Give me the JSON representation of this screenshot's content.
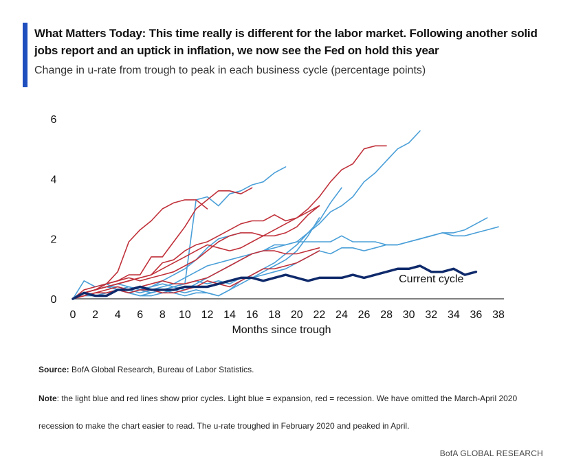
{
  "header": {
    "title": "What Matters Today: This time really is different for the labor market. Following another solid jobs report and an uptick in inflation, we now see the Fed on hold this year",
    "subtitle": "Change in u-rate from trough to peak in each business cycle (percentage points)"
  },
  "footer": {
    "source_label": "Source:",
    "source_text": " BofA Global Research, Bureau of Labor Statistics.",
    "note_label": "Note",
    "note_text_1": ": the light blue and red lines show prior cycles. Light blue = expansion, red = recession. We have omitted the March-April 2020",
    "note_text_2": "recession to make the chart easier to read. The u-rate troughed in February 2020 and peaked in April.",
    "brand": "BofA GLOBAL RESEARCH"
  },
  "colors": {
    "expansion": "#4a9fd8",
    "recession": "#c0313a",
    "current": "#0f2a6b",
    "axis": "#555555",
    "accent": "#1f4fbf"
  },
  "chart_data": {
    "type": "line",
    "title": "",
    "xlabel": "Months since trough",
    "ylabel": "",
    "xlim": [
      0,
      38
    ],
    "ylim": [
      0,
      6
    ],
    "x_ticks": [
      0,
      2,
      4,
      6,
      8,
      10,
      12,
      14,
      16,
      18,
      20,
      22,
      24,
      26,
      28,
      30,
      32,
      34,
      36,
      38
    ],
    "y_ticks": [
      0,
      2,
      4,
      6
    ],
    "grid": false,
    "legend": "none",
    "annotations": [
      {
        "text": "Current cycle",
        "x": 32,
        "y": 0.55
      }
    ],
    "series": [
      {
        "kind": "expansion",
        "x": [
          0,
          1,
          2,
          3,
          4,
          5,
          6,
          7,
          8,
          9,
          10,
          11,
          12,
          13,
          14,
          15,
          16,
          17,
          18,
          19
        ],
        "y": [
          0,
          0.6,
          0.4,
          0.5,
          0.3,
          0.4,
          0.3,
          0.2,
          0.3,
          0.4,
          0.5,
          3.3,
          3.4,
          3.1,
          3.5,
          3.6,
          3.8,
          3.9,
          4.2,
          4.4
        ]
      },
      {
        "kind": "expansion",
        "x": [
          0,
          1,
          2,
          3,
          4,
          5,
          6,
          7,
          8,
          9,
          10,
          11,
          12,
          13,
          14,
          15,
          16,
          17,
          18,
          19,
          20,
          21,
          22,
          23,
          24,
          25,
          26,
          27,
          28,
          29,
          30,
          31,
          32,
          33,
          34,
          35,
          36,
          37,
          38
        ],
        "y": [
          0,
          0.2,
          0.3,
          0.4,
          0.4,
          0.3,
          0.2,
          0.3,
          0.4,
          0.5,
          0.7,
          0.9,
          1.1,
          1.2,
          1.3,
          1.4,
          1.5,
          1.6,
          1.7,
          1.8,
          1.9,
          1.9,
          1.9,
          1.9,
          2.1,
          1.9,
          1.9,
          1.9,
          1.8,
          1.8,
          1.9,
          2.0,
          2.1,
          2.2,
          2.1,
          2.1,
          2.2,
          2.3,
          2.4
        ]
      },
      {
        "kind": "expansion",
        "x": [
          0,
          1,
          2,
          3,
          4,
          5,
          6,
          7,
          8,
          9,
          10,
          11,
          12,
          13,
          14,
          15,
          16,
          17,
          18,
          19,
          20,
          21,
          22,
          23,
          24,
          25,
          26,
          27,
          28,
          29,
          30,
          31,
          32,
          33,
          34,
          35,
          36,
          37
        ],
        "y": [
          0,
          0.2,
          0.3,
          0.4,
          0.5,
          0.4,
          0.3,
          0.4,
          0.5,
          0.4,
          0.5,
          0.6,
          0.5,
          0.6,
          0.5,
          0.7,
          0.7,
          0.8,
          0.9,
          1.0,
          1.2,
          1.4,
          1.6,
          1.5,
          1.7,
          1.7,
          1.6,
          1.7,
          1.8,
          1.8,
          1.9,
          2.0,
          2.1,
          2.2,
          2.2,
          2.3,
          2.5,
          2.7
        ]
      },
      {
        "kind": "expansion",
        "x": [
          0,
          1,
          2,
          3,
          4,
          5,
          6,
          7,
          8,
          9,
          10,
          11,
          12,
          13,
          14,
          15,
          16,
          17,
          18,
          19,
          20,
          21,
          22,
          23,
          24,
          25,
          26,
          27,
          28,
          29,
          30,
          31
        ],
        "y": [
          0,
          0.2,
          0.1,
          0.2,
          0.3,
          0.2,
          0.3,
          0.2,
          0.3,
          0.4,
          0.3,
          0.5,
          0.7,
          0.9,
          1.1,
          1.3,
          1.5,
          1.6,
          1.8,
          1.8,
          1.9,
          2.2,
          2.5,
          2.9,
          3.1,
          3.4,
          3.9,
          4.2,
          4.6,
          5.0,
          5.2,
          5.6
        ]
      },
      {
        "kind": "expansion",
        "x": [
          0,
          1,
          2,
          3,
          4,
          5,
          6,
          7,
          8,
          9,
          10,
          11,
          12,
          13,
          14,
          15,
          16,
          17,
          18,
          19,
          20,
          21,
          22,
          23,
          24
        ],
        "y": [
          0,
          0.2,
          0.3,
          0.5,
          0.3,
          0.2,
          0.1,
          0.2,
          0.3,
          0.2,
          0.1,
          0.2,
          0.2,
          0.1,
          0.3,
          0.6,
          0.8,
          1.0,
          1.2,
          1.5,
          1.8,
          2.2,
          2.6,
          3.2,
          3.7
        ]
      },
      {
        "kind": "expansion",
        "x": [
          0,
          1,
          2,
          3,
          4,
          5,
          6,
          7,
          8,
          9,
          10,
          11,
          12,
          13,
          14,
          15
        ],
        "y": [
          0,
          0.2,
          0.3,
          0.4,
          0.3,
          0.2,
          0.3,
          0.4,
          0.6,
          0.8,
          1.0,
          1.3,
          1.7,
          2.0,
          2.1,
          2.2
        ]
      },
      {
        "kind": "expansion",
        "x": [
          0,
          1,
          2,
          3,
          4,
          5,
          6,
          7,
          8,
          9,
          10,
          11,
          12,
          13,
          14,
          15,
          16,
          17,
          18,
          19,
          20,
          21,
          22
        ],
        "y": [
          0,
          0.1,
          0.1,
          0.2,
          0.3,
          0.2,
          0.1,
          0.1,
          0.2,
          0.3,
          0.2,
          0.3,
          0.2,
          0.1,
          0.3,
          0.5,
          0.7,
          0.9,
          1.1,
          1.3,
          1.6,
          2.1,
          2.7
        ]
      },
      {
        "kind": "recession",
        "x": [
          0,
          1,
          2,
          3,
          4,
          5,
          6,
          7,
          8,
          9,
          10,
          11,
          12
        ],
        "y": [
          0,
          0.2,
          0.3,
          0.5,
          0.9,
          1.9,
          2.3,
          2.6,
          3.0,
          3.2,
          3.3,
          3.3,
          3.0
        ]
      },
      {
        "kind": "recession",
        "x": [
          0,
          1,
          2,
          3,
          4,
          5,
          6,
          7,
          8,
          9,
          10,
          11,
          12,
          13,
          14,
          15,
          16
        ],
        "y": [
          0,
          0.3,
          0.4,
          0.5,
          0.6,
          0.8,
          0.8,
          1.4,
          1.4,
          1.9,
          2.4,
          3.0,
          3.3,
          3.6,
          3.6,
          3.5,
          3.7
        ]
      },
      {
        "kind": "recession",
        "x": [
          0,
          1,
          2,
          3,
          4,
          5,
          6,
          7,
          8,
          9,
          10,
          11,
          12,
          13,
          14,
          15,
          16,
          17,
          18,
          19,
          20,
          21,
          22,
          23,
          24,
          25,
          26,
          27,
          28
        ],
        "y": [
          0,
          0.2,
          0.3,
          0.4,
          0.5,
          0.6,
          0.7,
          0.8,
          1.0,
          1.2,
          1.4,
          1.6,
          1.8,
          1.7,
          1.6,
          1.7,
          1.9,
          2.1,
          2.3,
          2.5,
          2.7,
          3.0,
          3.4,
          3.9,
          4.3,
          4.5,
          5.0,
          5.1,
          5.1
        ]
      },
      {
        "kind": "recession",
        "x": [
          0,
          1,
          2,
          3,
          4,
          5,
          6,
          7,
          8,
          9,
          10,
          11,
          12,
          13,
          14,
          15,
          16,
          17,
          18,
          19,
          20,
          21,
          22
        ],
        "y": [
          0,
          0.2,
          0.3,
          0.4,
          0.5,
          0.6,
          0.7,
          0.8,
          1.2,
          1.3,
          1.6,
          1.8,
          1.9,
          2.1,
          2.3,
          2.5,
          2.6,
          2.6,
          2.8,
          2.6,
          2.7,
          2.9,
          3.1
        ]
      },
      {
        "kind": "recession",
        "x": [
          0,
          1,
          2,
          3,
          4,
          5,
          6,
          7,
          8,
          9,
          10,
          11,
          12,
          13,
          14,
          15,
          16,
          17,
          18,
          19,
          20,
          21,
          22
        ],
        "y": [
          0,
          0.2,
          0.3,
          0.5,
          0.6,
          0.7,
          0.6,
          0.7,
          0.8,
          0.9,
          1.1,
          1.3,
          1.6,
          1.9,
          2.1,
          2.2,
          2.2,
          2.1,
          2.1,
          2.2,
          2.4,
          2.8,
          3.1
        ]
      },
      {
        "kind": "recession",
        "x": [
          0,
          1,
          2,
          3,
          4,
          5,
          6,
          7,
          8,
          9,
          10,
          11,
          12,
          13,
          14,
          15,
          16,
          17,
          18,
          19,
          20,
          21,
          22
        ],
        "y": [
          0,
          0.1,
          0.2,
          0.3,
          0.4,
          0.3,
          0.4,
          0.5,
          0.6,
          0.5,
          0.5,
          0.6,
          0.7,
          0.9,
          1.1,
          1.3,
          1.5,
          1.6,
          1.6,
          1.5,
          1.5,
          1.6,
          1.7
        ]
      },
      {
        "kind": "recession",
        "x": [
          0,
          1,
          2,
          3,
          4,
          5,
          6,
          7,
          8,
          9,
          10,
          11,
          12,
          13,
          14,
          15,
          16,
          17,
          18,
          19,
          20,
          21,
          22
        ],
        "y": [
          0,
          0.1,
          0.2,
          0.2,
          0.3,
          0.2,
          0.3,
          0.3,
          0.2,
          0.2,
          0.3,
          0.4,
          0.6,
          0.5,
          0.4,
          0.6,
          0.8,
          1.0,
          1.0,
          1.1,
          1.2,
          1.4,
          1.6
        ]
      },
      {
        "kind": "current",
        "name": "Current cycle",
        "x": [
          0,
          1,
          2,
          3,
          4,
          5,
          6,
          7,
          8,
          9,
          10,
          11,
          12,
          13,
          14,
          15,
          16,
          17,
          18,
          19,
          20,
          21,
          22,
          23,
          24,
          25,
          26,
          27,
          28,
          29,
          30,
          31,
          32,
          33,
          34,
          35,
          36
        ],
        "y": [
          0,
          0.2,
          0.1,
          0.1,
          0.3,
          0.3,
          0.4,
          0.3,
          0.3,
          0.3,
          0.4,
          0.4,
          0.4,
          0.5,
          0.6,
          0.7,
          0.7,
          0.6,
          0.7,
          0.8,
          0.7,
          0.6,
          0.7,
          0.7,
          0.7,
          0.8,
          0.7,
          0.8,
          0.9,
          1.0,
          1.0,
          1.1,
          0.9,
          0.9,
          1.0,
          0.8,
          0.9
        ]
      }
    ]
  }
}
